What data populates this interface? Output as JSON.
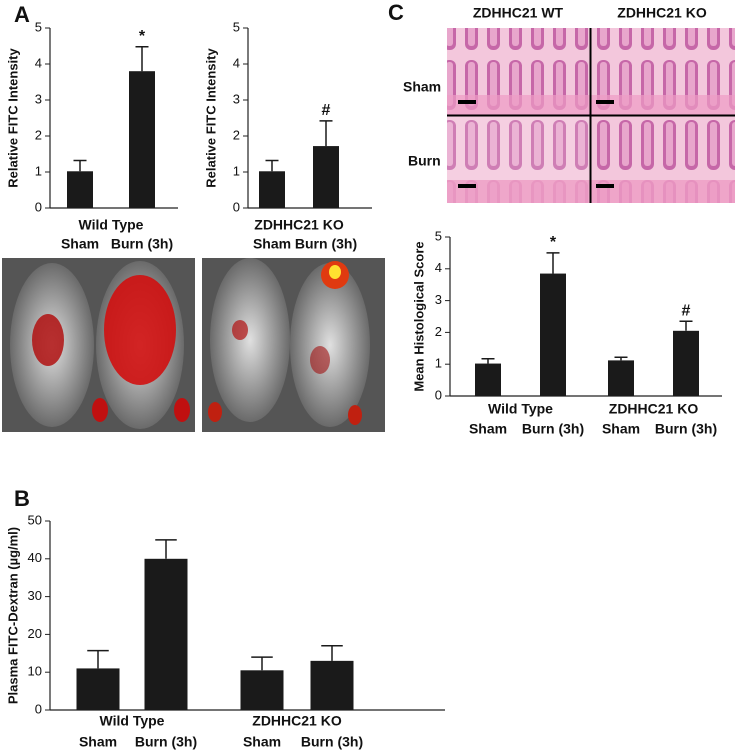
{
  "panel_labels": [
    "A",
    "B",
    "C"
  ],
  "histology": {
    "columns": [
      "ZDHHC21 WT",
      "ZDHHC21 KO"
    ],
    "rows": [
      "Sham",
      "Burn"
    ]
  },
  "chart_data": [
    {
      "type": "bar",
      "ylabel": "Relative FITC Intensity",
      "groups": [
        "Wild Type"
      ],
      "categories": [
        "Sham",
        "Burn (3h)"
      ],
      "values": [
        1.02,
        3.8
      ],
      "errors": [
        0.3,
        0.68
      ],
      "markers": [
        null,
        "*"
      ],
      "color": "#1a1a1a",
      "ylim": [
        0,
        5
      ],
      "yticks": [
        0,
        1,
        2,
        3,
        4,
        5
      ]
    },
    {
      "type": "bar",
      "ylabel": "Relative FITC Intensity",
      "groups": [
        "ZDHHC21 KO"
      ],
      "categories": [
        "Sham",
        "Burn (3h)"
      ],
      "values": [
        1.02,
        1.72
      ],
      "errors": [
        0.3,
        0.7
      ],
      "markers": [
        null,
        "#"
      ],
      "color": "#1a1a1a",
      "ylim": [
        0,
        5
      ],
      "yticks": [
        0,
        1,
        2,
        3,
        4,
        5
      ]
    },
    {
      "type": "bar",
      "ylabel": "Plasma FITC-Dextran (µg/ml)",
      "groups": [
        "Wild Type",
        "ZDHHC21 KO"
      ],
      "categories": [
        "Sham",
        "Burn (3h)",
        "Sham",
        "Burn (3h)"
      ],
      "values": [
        11,
        40,
        10.5,
        13
      ],
      "errors": [
        4.7,
        5,
        3.5,
        4
      ],
      "color": "#1a1a1a",
      "ylim": [
        0,
        50
      ],
      "yticks": [
        0,
        10,
        20,
        30,
        40,
        50
      ]
    },
    {
      "type": "bar",
      "ylabel": "Mean Histological  Score",
      "groups": [
        "Wild Type",
        "ZDHHC21 KO"
      ],
      "categories": [
        "Sham",
        "Burn (3h)",
        "Sham",
        "Burn (3h)"
      ],
      "values": [
        1.02,
        3.85,
        1.12,
        2.05
      ],
      "errors": [
        0.15,
        0.65,
        0.1,
        0.3
      ],
      "markers": [
        null,
        "*",
        null,
        "#"
      ],
      "color": "#1a1a1a",
      "ylim": [
        0,
        5
      ],
      "yticks": [
        0,
        1,
        2,
        3,
        4,
        5
      ]
    }
  ]
}
